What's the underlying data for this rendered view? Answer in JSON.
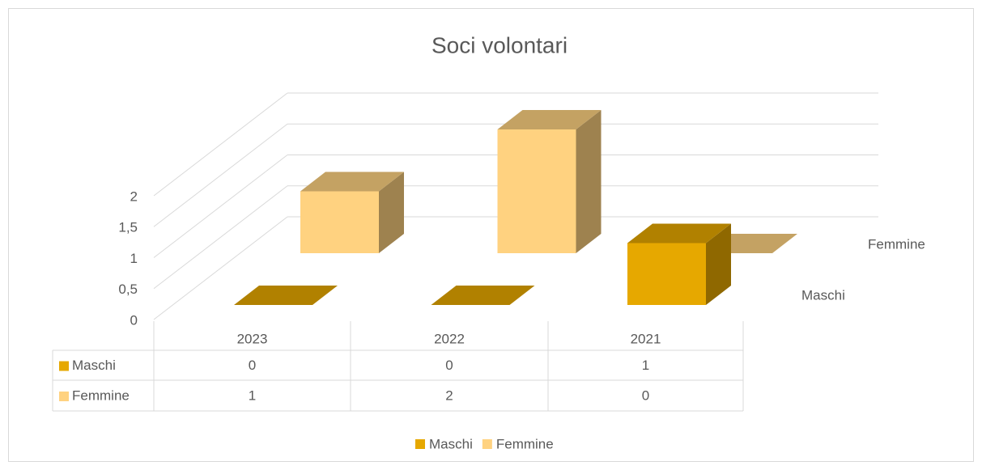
{
  "chart_data": {
    "type": "bar3d",
    "title": "Soci volontari",
    "categories": [
      "2023",
      "2022",
      "2021"
    ],
    "series": [
      {
        "name": "Maschi",
        "color": "#e6a800",
        "values": [
          0,
          0,
          1
        ]
      },
      {
        "name": "Femmine",
        "color": "#ffd280",
        "values": [
          1,
          2,
          0
        ]
      }
    ],
    "ylim": [
      0,
      2
    ],
    "yticks": [
      0,
      {
        "value": 0.5,
        "label": "0,5"
      },
      1,
      {
        "value": 1.5,
        "label": "1,5"
      },
      2
    ],
    "grid": true,
    "data_table": true,
    "legend": "bottom"
  }
}
